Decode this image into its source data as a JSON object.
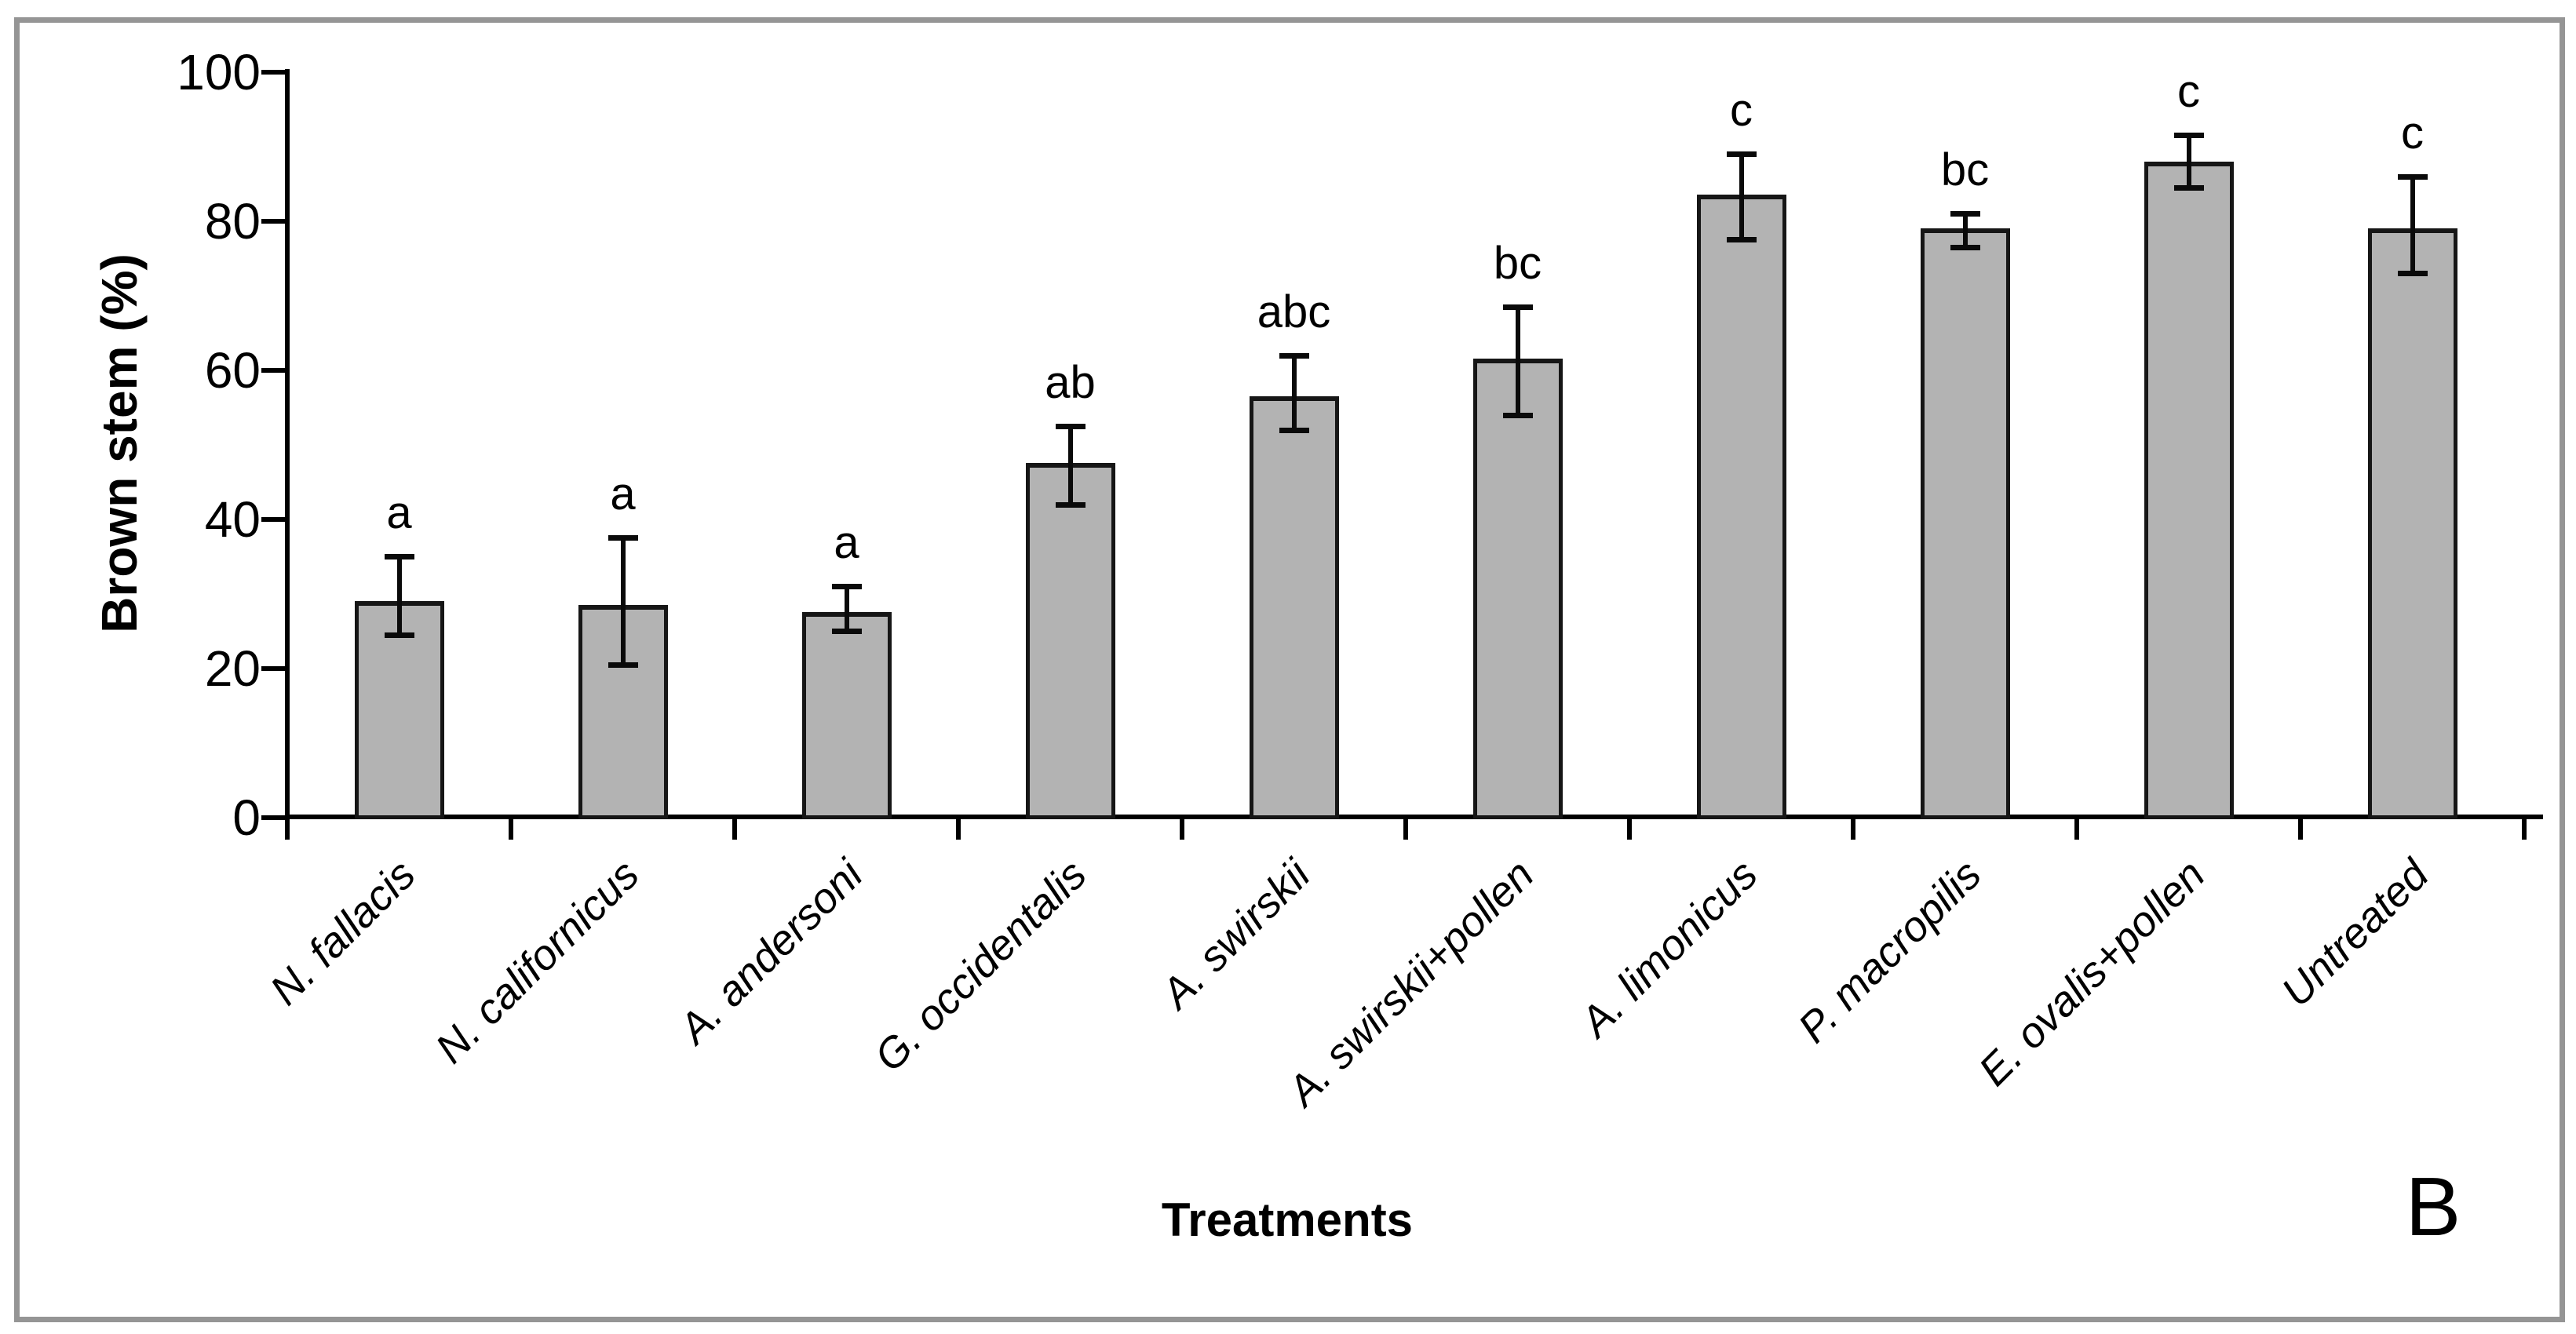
{
  "chart_data": {
    "type": "bar",
    "title": "",
    "panel_label": "B",
    "xlabel": "Treatments",
    "ylabel": "Brown stem (%)",
    "ylim": [
      0,
      100
    ],
    "yticks": [
      0,
      20,
      40,
      60,
      80,
      100
    ],
    "grid": false,
    "legend": null,
    "categories": [
      "N. fallacis",
      "N. californicus",
      "A. andersoni",
      "G. occidentalis",
      "A. swirskii",
      "A. swirskii+pollen",
      "A. limonicus",
      "P. macropilis",
      "E. ovalis+pollen",
      "Untreated"
    ],
    "values": [
      29,
      28.5,
      27.5,
      47.5,
      56.5,
      61.5,
      83.5,
      79,
      88,
      79
    ],
    "error_upper": [
      35,
      37.5,
      31,
      52.5,
      62,
      68.5,
      89,
      81,
      91.5,
      86
    ],
    "error_lower": [
      24.5,
      20.5,
      25,
      42,
      52,
      54,
      77.5,
      76.5,
      84.5,
      73
    ],
    "sig_letters": [
      "a",
      "a",
      "a",
      "ab",
      "abc",
      "bc",
      "c",
      "bc",
      "c",
      "c"
    ],
    "bar_color": "#b3b3b3",
    "bar_border_color": "#161616",
    "error_color": "#0a0a0a",
    "axis_color": "#000000",
    "frame_color": "#959595"
  }
}
